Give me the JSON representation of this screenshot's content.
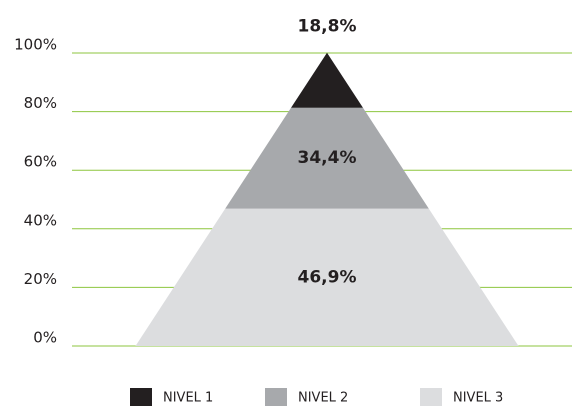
{
  "chart_data": {
    "type": "pyramid",
    "categories": [
      "NIVEL 1",
      "NIVEL 2",
      "NIVEL 3"
    ],
    "values": [
      18.8,
      34.4,
      46.9
    ],
    "value_labels": [
      "18,8%",
      "34,4%",
      "46,9%"
    ],
    "colors": [
      "#231f20",
      "#a7a9ac",
      "#dcdddf"
    ],
    "ylim": [
      0,
      100
    ],
    "yticks": [
      {
        "value": 0,
        "label": "0%"
      },
      {
        "value": 20,
        "label": "20%"
      },
      {
        "value": 40,
        "label": "40%"
      },
      {
        "value": 60,
        "label": "60%"
      },
      {
        "value": 80,
        "label": "80%"
      },
      {
        "value": 100,
        "label": "100%"
      }
    ],
    "grid": true,
    "grid_color": "#8dc63f",
    "legend": "bottom"
  }
}
